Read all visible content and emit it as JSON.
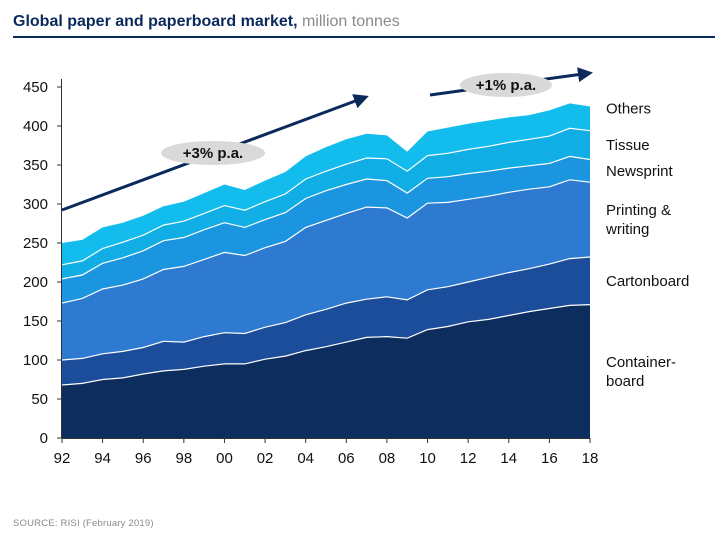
{
  "header": {
    "title": "Global paper and paperboard market,",
    "unit": "million tonnes"
  },
  "footer": {
    "source": "SOURCE: RISI (February 2019)"
  },
  "colors": {
    "containerboard": "#0d2d5e",
    "cartonboard": "#1b4d9a",
    "printing_writing": "#2f7ad1",
    "newsprint": "#1c95e0",
    "tissue": "#11aee6",
    "others": "#12bdee",
    "separator": "#ffffff",
    "arrow": "#0b2a5c",
    "badge": "#d9d9d9"
  },
  "chart_data": {
    "type": "area",
    "stacked": true,
    "x": [
      1992,
      1993,
      1994,
      1995,
      1996,
      1997,
      1998,
      1999,
      2000,
      2001,
      2002,
      2003,
      2004,
      2005,
      2006,
      2007,
      2008,
      2009,
      2010,
      2011,
      2012,
      2013,
      2014,
      2015,
      2016,
      2017,
      2018
    ],
    "x_tick_labels": [
      "92",
      "94",
      "96",
      "98",
      "00",
      "02",
      "04",
      "06",
      "08",
      "10",
      "12",
      "14",
      "16",
      "18"
    ],
    "ylim": [
      0,
      450
    ],
    "y_ticks": [
      0,
      50,
      100,
      150,
      200,
      250,
      300,
      350,
      400,
      450
    ],
    "grid": false,
    "legend_position": "right",
    "series": [
      {
        "name": "Container- board",
        "key": "containerboard",
        "label_lines": [
          "Container-",
          "board"
        ],
        "values": [
          68,
          70,
          75,
          77,
          82,
          86,
          88,
          92,
          95,
          95,
          101,
          105,
          112,
          117,
          123,
          129,
          130,
          128,
          139,
          143,
          149,
          152,
          157,
          162,
          166,
          170,
          171
        ]
      },
      {
        "name": "Cartonboard",
        "key": "cartonboard",
        "label_lines": [
          "Cartonboard"
        ],
        "values": [
          32,
          32,
          33,
          34,
          34,
          38,
          35,
          38,
          40,
          39,
          41,
          43,
          46,
          48,
          50,
          49,
          51,
          49,
          51,
          51,
          51,
          54,
          55,
          55,
          57,
          60,
          61
        ]
      },
      {
        "name": "Printing & writing",
        "key": "printing_writing",
        "label_lines": [
          "Printing &",
          "writing"
        ],
        "values": [
          73,
          77,
          83,
          85,
          88,
          92,
          97,
          99,
          103,
          100,
          102,
          104,
          112,
          114,
          115,
          118,
          114,
          105,
          111,
          108,
          106,
          104,
          103,
          102,
          99,
          101,
          96
        ]
      },
      {
        "name": "Newsprint",
        "key": "newsprint",
        "label_lines": [
          "Newsprint"
        ],
        "values": [
          31,
          30,
          33,
          35,
          36,
          37,
          37,
          38,
          38,
          36,
          36,
          37,
          37,
          38,
          37,
          36,
          35,
          32,
          32,
          33,
          33,
          32,
          31,
          30,
          30,
          30,
          29
        ]
      },
      {
        "name": "Tissue",
        "key": "tissue",
        "label_lines": [
          "Tissue"
        ],
        "values": [
          18,
          18,
          19,
          20,
          20,
          20,
          21,
          21,
          22,
          22,
          23,
          24,
          25,
          25,
          26,
          27,
          28,
          28,
          29,
          30,
          31,
          32,
          33,
          34,
          35,
          36,
          37
        ]
      },
      {
        "name": "Others",
        "key": "others",
        "label_lines": [
          "Others"
        ],
        "values": [
          28,
          27,
          27,
          25,
          25,
          24,
          25,
          26,
          27,
          26,
          27,
          28,
          29,
          31,
          32,
          31,
          30,
          25,
          31,
          33,
          33,
          33,
          32,
          31,
          33,
          32,
          31
        ]
      }
    ],
    "annotations": [
      {
        "text": "+3% p.a.",
        "from_year": 1992,
        "to_year": 2007
      },
      {
        "text": "+1% p.a.",
        "from_year": 2009,
        "to_year": 2018
      }
    ]
  }
}
